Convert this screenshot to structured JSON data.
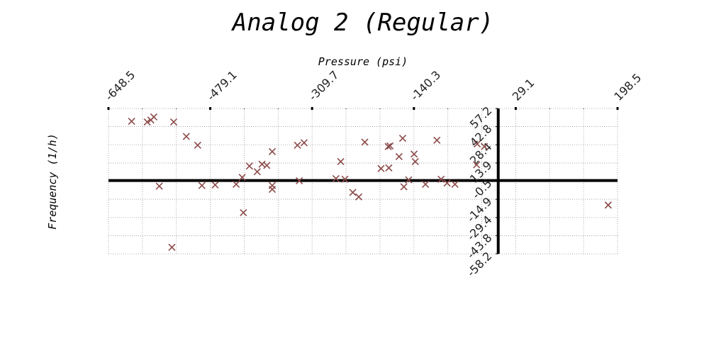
{
  "chart_data": {
    "type": "scatter",
    "title": "Analog 2 (Regular)",
    "xlabel": "Pressure (psi)",
    "ylabel": "Frequency (1/h)",
    "xlim": [
      -648.5,
      198.5
    ],
    "ylim": [
      -58.2,
      57.2
    ],
    "x_ticks": [
      "-648.5",
      "-479.1",
      "-309.7",
      "-140.3",
      "29.1",
      "198.5"
    ],
    "y_ticks": [
      "57.2",
      "42.8",
      "28.4",
      "13.9",
      "-0.5",
      "-14.9",
      "-29.4",
      "-43.8",
      "-58.2"
    ],
    "grid": true,
    "marker": "x",
    "color": "#8b4a4a",
    "series": [
      {
        "points": [
          [
            -610,
            47
          ],
          [
            -584,
            46.5
          ],
          [
            -578,
            48
          ],
          [
            -573,
            50.5
          ],
          [
            -540,
            46.5
          ],
          [
            -519,
            35
          ],
          [
            -500,
            28
          ],
          [
            -564,
            -4.5
          ],
          [
            -471,
            -3.5
          ],
          [
            -426,
            2.5
          ],
          [
            -436,
            -3
          ],
          [
            -493,
            -4
          ],
          [
            -414,
            11.5
          ],
          [
            -401,
            7
          ],
          [
            -393,
            13
          ],
          [
            -385,
            12
          ],
          [
            -376,
            -4
          ],
          [
            -376,
            -7
          ],
          [
            -331,
            -0.2
          ],
          [
            -323,
            30
          ],
          [
            -334,
            28
          ],
          [
            -376,
            23
          ],
          [
            -424,
            -25.5
          ],
          [
            -543,
            -53
          ],
          [
            -270,
            1.5
          ],
          [
            -262,
            15
          ],
          [
            -255,
            1
          ],
          [
            -242,
            -9.5
          ],
          [
            -232,
            -13
          ],
          [
            -222,
            30.5
          ],
          [
            -195,
            9.5
          ],
          [
            -183,
            27
          ],
          [
            -180,
            27.5
          ],
          [
            -182,
            10
          ],
          [
            -165,
            19
          ],
          [
            -159,
            33.5
          ],
          [
            -149,
            0.5
          ],
          [
            -157,
            -5
          ],
          [
            -140,
            21
          ],
          [
            -138,
            15
          ],
          [
            -121,
            -3
          ],
          [
            -102,
            32
          ],
          [
            -95,
            1
          ],
          [
            -85,
            -2
          ],
          [
            -72,
            -3
          ],
          [
            -35,
            29
          ],
          [
            -23,
            27
          ],
          [
            -36,
            12.5
          ],
          [
            183,
            -19.5
          ]
        ]
      }
    ]
  }
}
